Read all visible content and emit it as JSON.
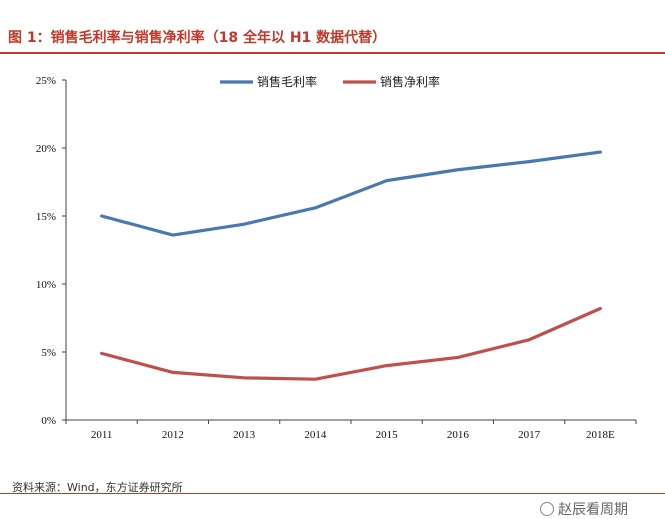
{
  "figure": {
    "title": "图 1：销售毛利率与销售净利率（18 全年以 H1 数据代替）",
    "source": "资料来源：Wind，东方证券研究所",
    "watermark": "赵辰看周期"
  },
  "colors": {
    "accent": "#c0392b",
    "series_gross": "#4a78b0",
    "series_net": "#c0504d"
  },
  "chart_data": {
    "type": "line",
    "title": "",
    "xlabel": "",
    "ylabel": "",
    "categories": [
      "2011",
      "2012",
      "2013",
      "2014",
      "2015",
      "2016",
      "2017",
      "2018E"
    ],
    "ylim": [
      0,
      25
    ],
    "yticks": [
      0,
      5,
      10,
      15,
      20,
      25
    ],
    "ytick_labels": [
      "0%",
      "5%",
      "10%",
      "15%",
      "20%",
      "25%"
    ],
    "grid": false,
    "legend_position": "top-center",
    "series": [
      {
        "name": "销售毛利率",
        "color": "#4a78b0",
        "values": [
          15.0,
          13.6,
          14.4,
          15.6,
          17.6,
          18.4,
          19.0,
          19.7
        ]
      },
      {
        "name": "销售净利率",
        "color": "#c0504d",
        "values": [
          4.9,
          3.5,
          3.1,
          3.0,
          4.0,
          4.6,
          5.9,
          8.2
        ]
      }
    ]
  }
}
